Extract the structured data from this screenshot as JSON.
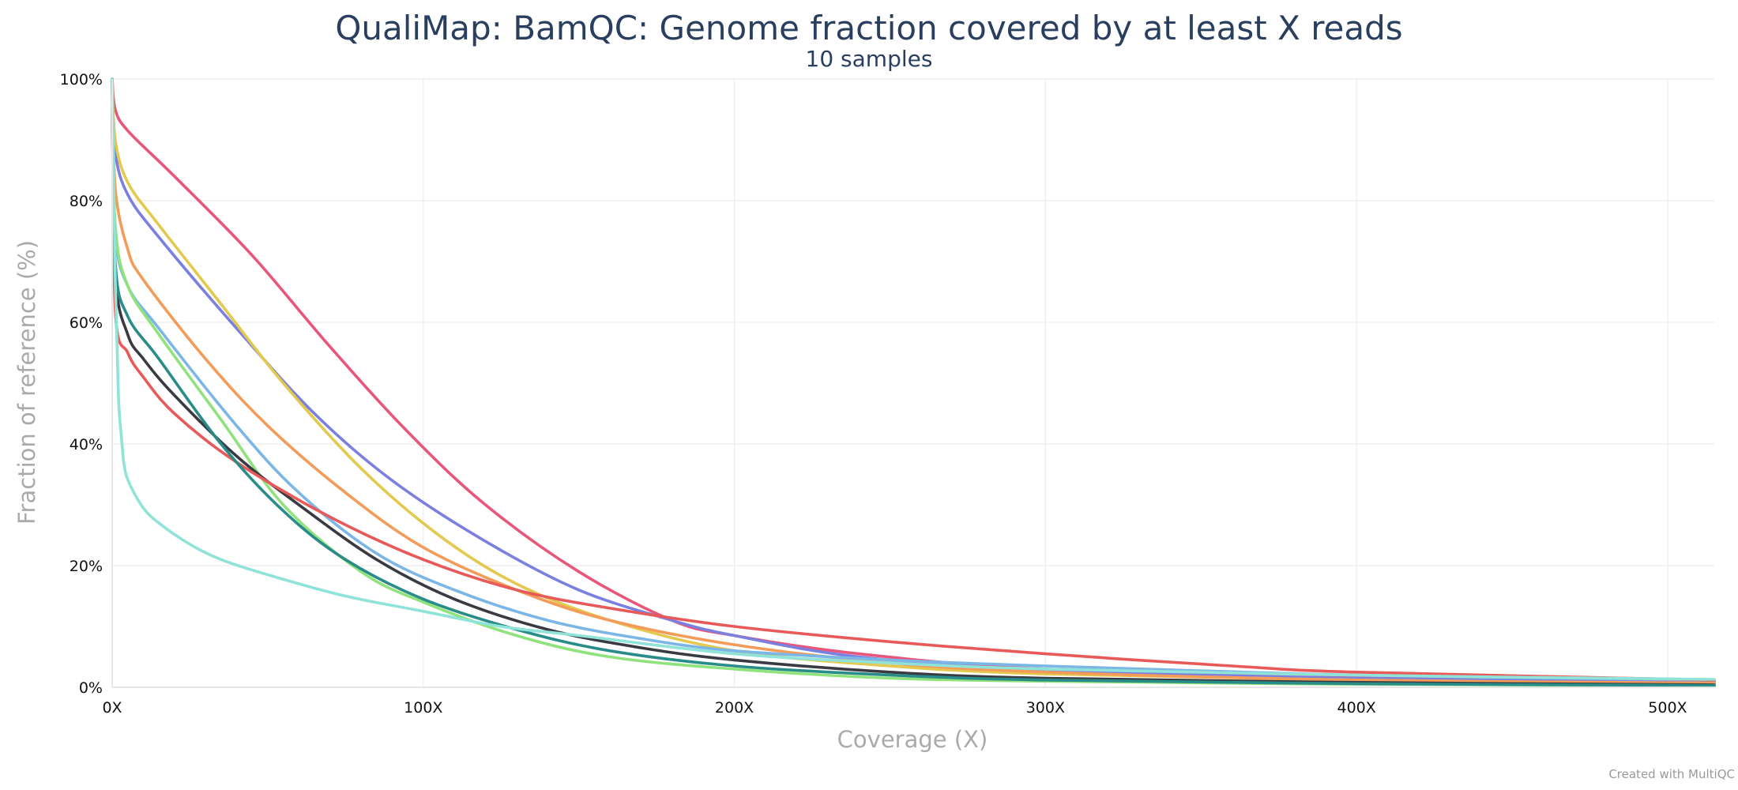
{
  "footer": {
    "credit": "Created with MultiQC"
  },
  "chart_data": {
    "type": "line",
    "title": "QualiMap: BamQC: Genome fraction covered by at least X reads",
    "subtitle": "10 samples",
    "xlabel": "Coverage (X)",
    "ylabel": "Fraction of reference (%)",
    "xlim": [
      0,
      515
    ],
    "ylim": [
      0,
      100
    ],
    "xticks": [
      0,
      100,
      200,
      300,
      400,
      500
    ],
    "xtick_labels": [
      "0X",
      "100X",
      "200X",
      "300X",
      "400X",
      "500X"
    ],
    "yticks": [
      0,
      20,
      40,
      60,
      80,
      100
    ],
    "ytick_labels": [
      "0%",
      "20%",
      "40%",
      "60%",
      "80%",
      "100%"
    ],
    "grid": true,
    "series": [
      {
        "color": "#e8567a",
        "x": [
          0,
          1,
          5,
          20,
          45,
          70,
          95,
          120,
          150,
          180,
          200,
          240,
          300,
          400,
          515
        ],
        "y": [
          100,
          95,
          91.5,
          84,
          71,
          56,
          42,
          30,
          19,
          11,
          8.5,
          5.5,
          3,
          1.7,
          1
        ]
      },
      {
        "color": "#7b80e0",
        "x": [
          0,
          1,
          5,
          15,
          40,
          65,
          90,
          120,
          150,
          180,
          200,
          240,
          300,
          400,
          515
        ],
        "y": [
          100,
          88,
          81,
          74,
          59,
          45,
          34,
          24,
          16,
          11,
          8.5,
          5,
          2.8,
          1.5,
          0.8
        ]
      },
      {
        "color": "#e3c94f",
        "x": [
          0,
          1,
          5,
          15,
          35,
          55,
          80,
          105,
          130,
          160,
          200,
          250,
          300,
          400,
          515
        ],
        "y": [
          100,
          90,
          83,
          76,
          63,
          50,
          36,
          25,
          17,
          11,
          6,
          3.5,
          2.2,
          1.2,
          0.6
        ]
      },
      {
        "color": "#f39c5a",
        "x": [
          0,
          1,
          5,
          10,
          30,
          50,
          75,
          100,
          130,
          160,
          200,
          250,
          300,
          400,
          515
        ],
        "y": [
          100,
          82,
          72,
          67,
          54,
          43,
          32,
          23,
          16,
          11,
          7,
          4,
          2.5,
          1.2,
          0.7
        ]
      },
      {
        "color": "#7bb6e6",
        "x": [
          0,
          1,
          5,
          15,
          40,
          60,
          85,
          110,
          140,
          170,
          200,
          250,
          300,
          400,
          515
        ],
        "y": [
          100,
          75,
          66,
          59,
          43,
          32,
          22,
          16,
          11,
          8,
          6,
          4.5,
          3.5,
          2,
          1.2
        ]
      },
      {
        "color": "#90e27c",
        "x": [
          0,
          1,
          5,
          15,
          35,
          55,
          80,
          100,
          130,
          160,
          200,
          250,
          300,
          400,
          515
        ],
        "y": [
          100,
          76,
          66,
          58,
          44,
          30,
          19,
          14,
          8.5,
          5,
          3,
          1.5,
          1,
          0.5,
          0.3
        ]
      },
      {
        "color": "#3a3b42",
        "x": [
          0,
          1,
          5,
          10,
          20,
          40,
          60,
          85,
          110,
          140,
          170,
          200,
          250,
          300,
          400,
          515
        ],
        "y": [
          100,
          68,
          58,
          54,
          48,
          38,
          30,
          21,
          14.5,
          9.5,
          6.5,
          4.5,
          2.5,
          1.5,
          0.8,
          0.4
        ]
      },
      {
        "color": "#e85a5a",
        "x": [
          0,
          1,
          5,
          10,
          20,
          40,
          70,
          100,
          130,
          160,
          200,
          250,
          300,
          360,
          400,
          515
        ],
        "y": [
          100,
          62,
          55,
          51,
          45,
          37,
          28,
          21,
          16,
          13,
          10,
          7.5,
          5.5,
          3.5,
          2.5,
          1.2
        ]
      },
      {
        "color": "#2a8c88",
        "x": [
          0,
          1,
          5,
          15,
          35,
          55,
          75,
          100,
          130,
          160,
          200,
          250,
          300,
          400,
          515
        ],
        "y": [
          100,
          70,
          61,
          54,
          40,
          29,
          21,
          14.5,
          9.5,
          6,
          3.5,
          2,
          1.2,
          0.6,
          0.3
        ]
      },
      {
        "color": "#8fe3d8",
        "x": [
          0,
          1,
          2,
          3,
          4,
          6,
          10,
          15,
          25,
          35,
          50,
          75,
          100,
          125,
          150,
          200,
          250,
          300,
          400,
          515
        ],
        "y": [
          100,
          67,
          48,
          41,
          36,
          33,
          29.5,
          27,
          23.5,
          21,
          18.5,
          15,
          12.5,
          10,
          8.5,
          5.5,
          4,
          3,
          2,
          1.3
        ]
      }
    ]
  }
}
